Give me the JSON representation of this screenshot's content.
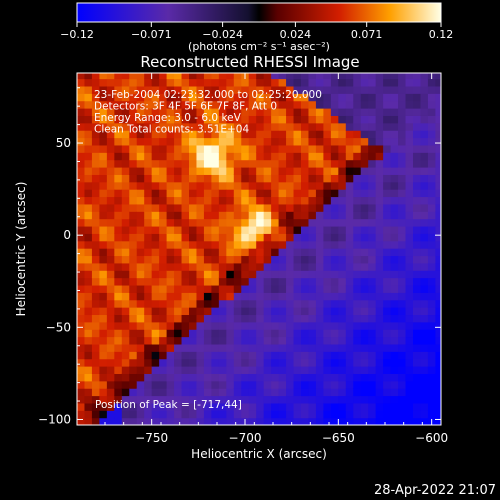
{
  "chart_data": {
    "type": "heatmap",
    "title": "Reconstructed RHESSI Image",
    "xlabel": "Heliocentric X (arcsec)",
    "ylabel": "Heliocentric Y (arcsec)",
    "xlim": [
      -790,
      -595
    ],
    "ylim": [
      -103,
      88
    ],
    "x_ticks": [
      -750,
      -700,
      -650,
      -600
    ],
    "x_tick_labels": [
      "−750",
      "−700",
      "−650",
      "−600"
    ],
    "y_ticks": [
      50,
      0,
      -50,
      -100
    ],
    "y_tick_labels": [
      "50",
      "0",
      "−50",
      "−100"
    ],
    "colorbar": {
      "range": [
        -0.12,
        0.12
      ],
      "ticks": [
        -0.12,
        -0.071,
        -0.024,
        0.024,
        0.071,
        0.12
      ],
      "tick_labels": [
        "−0.12",
        "−0.071",
        "−0.024",
        "0.024",
        "0.071",
        "0.12"
      ],
      "units": "(photons cm⁻² s⁻¹ asec⁻²)"
    },
    "annotations": [
      "23-Feb-2004 02:23:32.000 to 02:25:20.000",
      "Detectors: 3F 4F 5F 6F 7F 8F, Att 0",
      "Energy Range: 3.0 - 6.0 keV",
      "Clean    Total counts: 3.51E+04"
    ],
    "peak_label": "Position of Peak = [-717,44]",
    "peak": [
      -717,
      44
    ],
    "secondary_peak": [
      -695,
      3
    ],
    "grid": false
  },
  "footer": {
    "timestamp": "28-Apr-2022 21:07"
  }
}
